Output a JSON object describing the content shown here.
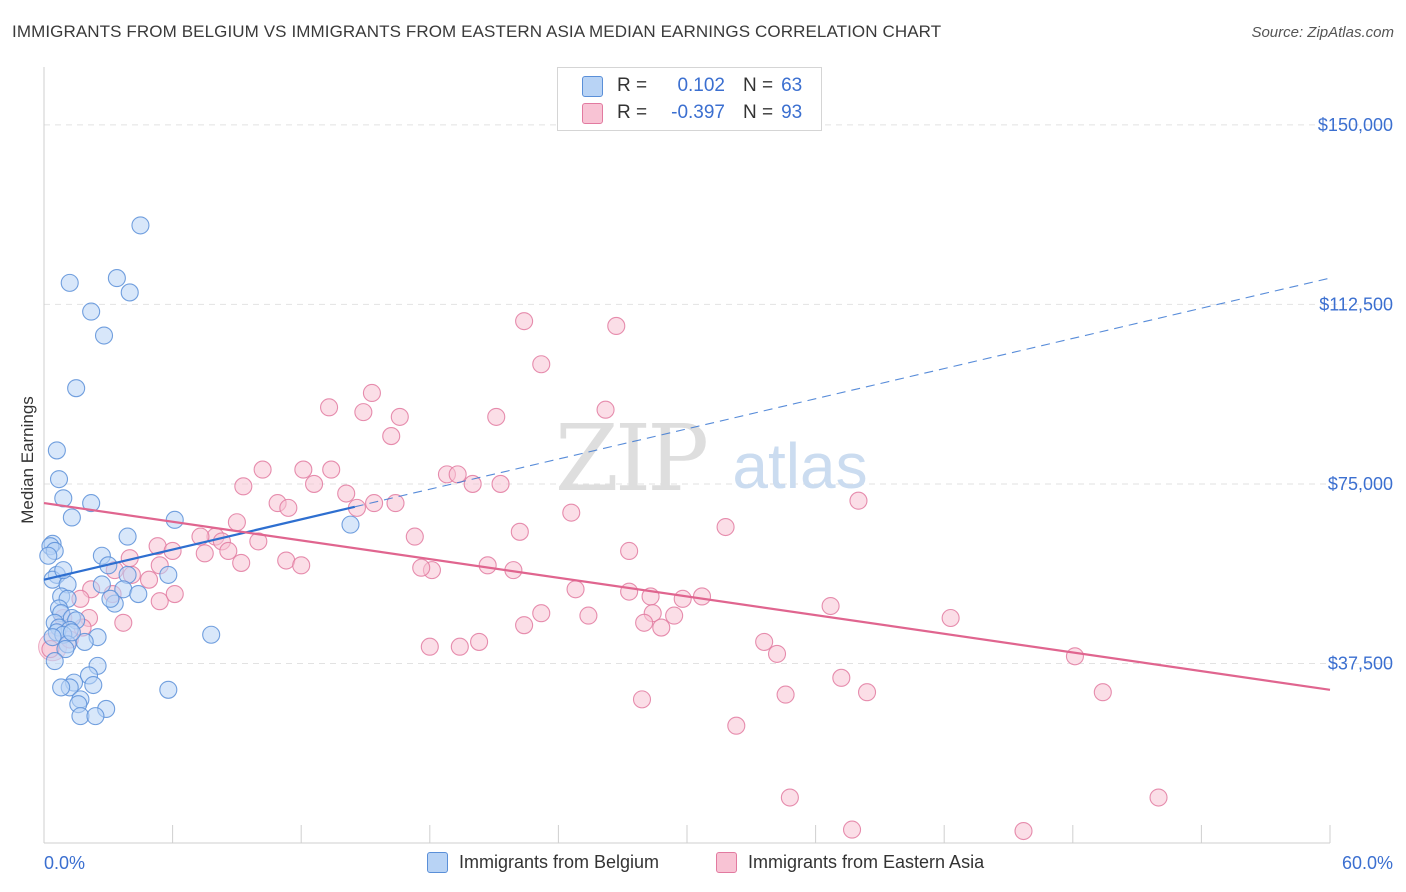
{
  "title": "IMMIGRANTS FROM BELGIUM VS IMMIGRANTS FROM EASTERN ASIA MEDIAN EARNINGS CORRELATION CHART",
  "source": "Source: ZipAtlas.com",
  "watermark": {
    "zip": "ZIP",
    "atlas": "atlas"
  },
  "legend": [
    {
      "r_label": "R =",
      "r_value": "0.102",
      "n_label": "N =",
      "n_value": "63"
    },
    {
      "r_label": "R =",
      "r_value": "-0.397",
      "n_label": "N =",
      "n_value": "93"
    }
  ],
  "bottom_legend": [
    "Immigrants from Belgium",
    "Immigrants from Eastern Asia"
  ],
  "colors": {
    "blue_fill": "#b8d3f5",
    "blue_stroke": "#5a8fd8",
    "blue_line": "#2e6fd0",
    "pink_fill": "#f8c3d4",
    "pink_stroke": "#e27aa0",
    "pink_line": "#e0658f",
    "grid": "#e2e2e2",
    "axis_text": "#3b6fd0"
  },
  "chart_data": {
    "type": "scatter",
    "xlabel": "",
    "ylabel": "Median Earnings",
    "xlim": [
      0,
      60
    ],
    "ylim": [
      0,
      160000
    ],
    "x_tick_labels": {
      "left": "0.0%",
      "right": "60.0%"
    },
    "y_ticks": [
      {
        "value": 150000,
        "label": "$150,000"
      },
      {
        "value": 112500,
        "label": "$112,500"
      },
      {
        "value": 75000,
        "label": "$75,000"
      },
      {
        "value": 37500,
        "label": "$37,500"
      }
    ],
    "grid": true,
    "legend_position": "top-center",
    "series": [
      {
        "name": "Immigrants from Belgium",
        "color": "blue",
        "trend": {
          "x0": 0,
          "y0": 55000,
          "x1": 60,
          "y1": 118000,
          "solid_until_x": 14.5
        },
        "points": [
          [
            4.5,
            129000
          ],
          [
            3.4,
            118000
          ],
          [
            1.2,
            117000
          ],
          [
            4.0,
            115000
          ],
          [
            2.2,
            111000
          ],
          [
            2.8,
            106000
          ],
          [
            1.5,
            95000
          ],
          [
            0.6,
            82000
          ],
          [
            0.7,
            76000
          ],
          [
            0.9,
            72000
          ],
          [
            2.2,
            71000
          ],
          [
            1.3,
            68000
          ],
          [
            6.1,
            67500
          ],
          [
            14.3,
            66500
          ],
          [
            3.9,
            64000
          ],
          [
            0.4,
            62500
          ],
          [
            0.3,
            62000
          ],
          [
            0.5,
            61000
          ],
          [
            0.2,
            60000
          ],
          [
            2.7,
            60000
          ],
          [
            3.0,
            58000
          ],
          [
            0.6,
            56000
          ],
          [
            5.8,
            56000
          ],
          [
            3.9,
            56000
          ],
          [
            0.4,
            55000
          ],
          [
            1.1,
            54000
          ],
          [
            2.7,
            54000
          ],
          [
            3.7,
            53000
          ],
          [
            4.4,
            52000
          ],
          [
            0.8,
            51500
          ],
          [
            1.1,
            51000
          ],
          [
            3.3,
            50000
          ],
          [
            0.7,
            49000
          ],
          [
            0.8,
            48000
          ],
          [
            1.3,
            47000
          ],
          [
            1.5,
            46500
          ],
          [
            0.5,
            46000
          ],
          [
            0.7,
            45000
          ],
          [
            1.2,
            44500
          ],
          [
            0.6,
            44000
          ],
          [
            0.9,
            43500
          ],
          [
            0.4,
            43000
          ],
          [
            2.5,
            43000
          ],
          [
            7.8,
            43500
          ],
          [
            1.9,
            42000
          ],
          [
            1.1,
            41500
          ],
          [
            1.0,
            40500
          ],
          [
            2.5,
            37000
          ],
          [
            2.1,
            35000
          ],
          [
            1.4,
            33500
          ],
          [
            2.3,
            33000
          ],
          [
            1.2,
            32500
          ],
          [
            0.8,
            32500
          ],
          [
            5.8,
            32000
          ],
          [
            1.7,
            30000
          ],
          [
            1.6,
            29000
          ],
          [
            2.9,
            28000
          ],
          [
            1.7,
            26500
          ],
          [
            2.4,
            26500
          ],
          [
            0.5,
            38000
          ],
          [
            1.3,
            44000
          ],
          [
            3.1,
            51000
          ],
          [
            0.9,
            57000
          ]
        ]
      },
      {
        "name": "Immigrants from Eastern Asia",
        "color": "pink",
        "trend": {
          "x0": 0,
          "y0": 71000,
          "x1": 60,
          "y1": 32000
        },
        "points": [
          [
            22.4,
            109000
          ],
          [
            26.7,
            108000
          ],
          [
            23.2,
            100000
          ],
          [
            15.3,
            94000
          ],
          [
            13.3,
            91000
          ],
          [
            14.9,
            90000
          ],
          [
            26.2,
            90500
          ],
          [
            16.6,
            89000
          ],
          [
            21.1,
            89000
          ],
          [
            16.2,
            85000
          ],
          [
            10.2,
            78000
          ],
          [
            12.1,
            78000
          ],
          [
            13.4,
            78000
          ],
          [
            18.8,
            77000
          ],
          [
            19.3,
            77000
          ],
          [
            20.0,
            75000
          ],
          [
            21.3,
            75000
          ],
          [
            12.6,
            75000
          ],
          [
            9.3,
            74500
          ],
          [
            14.1,
            73000
          ],
          [
            10.9,
            71000
          ],
          [
            15.4,
            71000
          ],
          [
            11.4,
            70000
          ],
          [
            16.4,
            71000
          ],
          [
            14.6,
            70000
          ],
          [
            24.6,
            69000
          ],
          [
            38.0,
            71500
          ],
          [
            9.0,
            67000
          ],
          [
            22.2,
            65000
          ],
          [
            17.3,
            64000
          ],
          [
            31.8,
            66000
          ],
          [
            8.0,
            64000
          ],
          [
            7.3,
            64000
          ],
          [
            8.3,
            63000
          ],
          [
            10.0,
            63000
          ],
          [
            5.3,
            62000
          ],
          [
            27.3,
            61000
          ],
          [
            6.0,
            61000
          ],
          [
            7.5,
            60500
          ],
          [
            11.3,
            59000
          ],
          [
            12.0,
            58000
          ],
          [
            4.0,
            59500
          ],
          [
            5.4,
            58000
          ],
          [
            3.3,
            57000
          ],
          [
            4.1,
            56000
          ],
          [
            18.1,
            57000
          ],
          [
            17.6,
            57500
          ],
          [
            20.7,
            58000
          ],
          [
            21.9,
            57000
          ],
          [
            4.9,
            55000
          ],
          [
            9.2,
            58500
          ],
          [
            24.8,
            53000
          ],
          [
            2.2,
            53000
          ],
          [
            3.2,
            52000
          ],
          [
            27.3,
            52500
          ],
          [
            28.3,
            51500
          ],
          [
            29.8,
            51000
          ],
          [
            30.7,
            51500
          ],
          [
            1.7,
            51000
          ],
          [
            5.4,
            50500
          ],
          [
            36.7,
            49500
          ],
          [
            23.2,
            48000
          ],
          [
            25.4,
            47500
          ],
          [
            28.4,
            48000
          ],
          [
            29.4,
            47500
          ],
          [
            42.3,
            47000
          ],
          [
            2.1,
            47000
          ],
          [
            22.4,
            45500
          ],
          [
            28.0,
            46000
          ],
          [
            28.8,
            45000
          ],
          [
            33.6,
            42000
          ],
          [
            18.0,
            41000
          ],
          [
            19.4,
            41000
          ],
          [
            20.3,
            42000
          ],
          [
            34.2,
            39500
          ],
          [
            48.1,
            39000
          ],
          [
            37.2,
            34500
          ],
          [
            38.4,
            31500
          ],
          [
            27.9,
            30000
          ],
          [
            32.3,
            24500
          ],
          [
            34.6,
            31000
          ],
          [
            49.4,
            31500
          ],
          [
            34.8,
            9500
          ],
          [
            37.7,
            2800
          ],
          [
            52.0,
            9500
          ],
          [
            45.7,
            2500
          ],
          [
            0.3,
            40500
          ],
          [
            1.2,
            42500
          ],
          [
            0.9,
            47000
          ],
          [
            1.8,
            45000
          ],
          [
            3.7,
            46000
          ],
          [
            6.1,
            52000
          ],
          [
            8.6,
            61000
          ]
        ]
      }
    ]
  }
}
